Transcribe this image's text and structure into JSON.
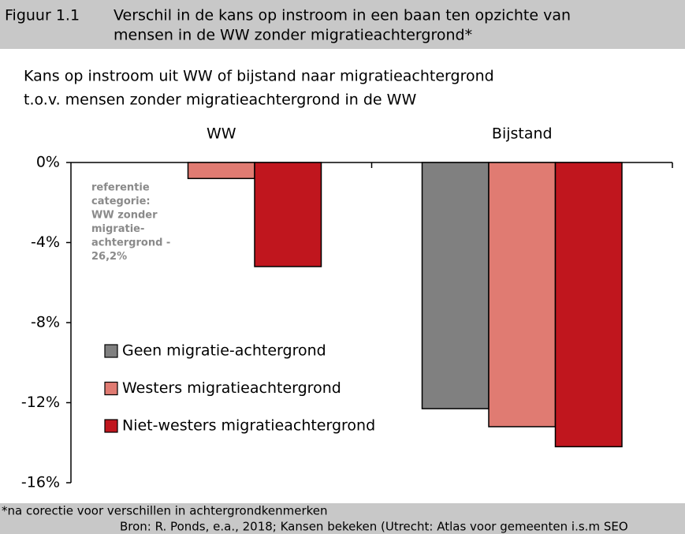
{
  "chart_data": {
    "type": "bar",
    "figure_label": "Figuur 1.1",
    "title": [
      "Verschil in de kans op instroom in een baan ten opzichte van",
      "mensen in de WW zonder migratieachtergrond*"
    ],
    "subtitle": [
      "Kans op instroom uit WW of bijstand naar migratieachtergrond",
      "t.o.v. mensen zonder migratieachtergrond in de WW"
    ],
    "categories": [
      "WW",
      "Bijstand"
    ],
    "series": [
      {
        "name": "Geen migratie-achtergrond",
        "color": "#808080",
        "values": [
          null,
          -12.3
        ]
      },
      {
        "name": "Westers migratieachtergrond",
        "color": "#e07b72",
        "values": [
          -0.8,
          -13.2
        ]
      },
      {
        "name": "Niet-westers migratieachtergrond",
        "color": "#c0161e",
        "values": [
          -5.2,
          -14.2
        ]
      }
    ],
    "ylim": [
      -16,
      0
    ],
    "yticks": [
      {
        "value": -16,
        "label": "-16%"
      },
      {
        "value": -12,
        "label": "-12%"
      },
      {
        "value": -8,
        "label": "-8%"
      },
      {
        "value": -4,
        "label": "-4%"
      },
      {
        "value": 0,
        "label": "0%"
      }
    ],
    "annotation": [
      "referentie",
      "categorie:",
      "WW zonder",
      "migratie-",
      "achtergrond -",
      "26,2%"
    ],
    "note": "*na corectie voor verschillen in achtergrondkenmerken",
    "source": "Bron: R. Ponds, e.a., 2018; Kansen bekeken (Utrecht: Atlas voor gemeenten i.s.m SEO"
  }
}
